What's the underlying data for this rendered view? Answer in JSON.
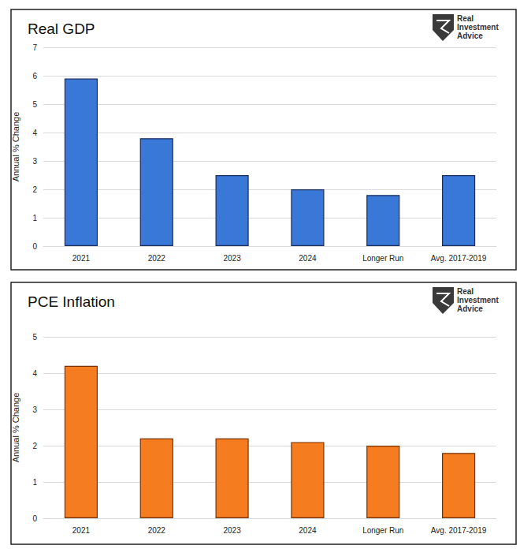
{
  "chart_data": [
    {
      "type": "bar",
      "title": "Real GDP",
      "annotation": "Real Investment Advice",
      "y_label": "Annual % Change",
      "categories": [
        "2021",
        "2022",
        "2023",
        "2024",
        "Longer Run",
        "Avg. 2017-2019"
      ],
      "values": [
        5.9,
        3.8,
        2.5,
        2.0,
        1.8,
        2.5
      ],
      "color": "#3a78d8",
      "ylim": [
        0,
        7
      ],
      "yticks": [
        0,
        1,
        2,
        3,
        4,
        5,
        6,
        7
      ],
      "grid": true
    },
    {
      "type": "bar",
      "title": "PCE Inflation",
      "annotation": "Real Investment Advice",
      "y_label": "Annual % Change",
      "categories": [
        "2021",
        "2022",
        "2023",
        "2024",
        "Longer Run",
        "Avg. 2017-2019"
      ],
      "values": [
        4.2,
        2.2,
        2.2,
        2.1,
        2.0,
        1.8
      ],
      "color": "#f57c1f",
      "ylim": [
        0,
        5
      ],
      "yticks": [
        0,
        1,
        2,
        3,
        4,
        5
      ],
      "grid": true
    }
  ]
}
